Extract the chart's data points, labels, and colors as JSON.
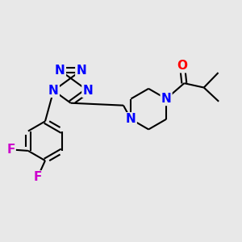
{
  "bg_color": "#e8e8e8",
  "bond_color": "#000000",
  "N_color": "#0000ff",
  "O_color": "#ff0000",
  "F_color": "#cc00cc",
  "bond_width": 1.5,
  "font_size_atom": 11,
  "fig_size": [
    3.0,
    3.0
  ],
  "dpi": 100,
  "xlim": [
    0,
    10
  ],
  "ylim": [
    0,
    10
  ]
}
